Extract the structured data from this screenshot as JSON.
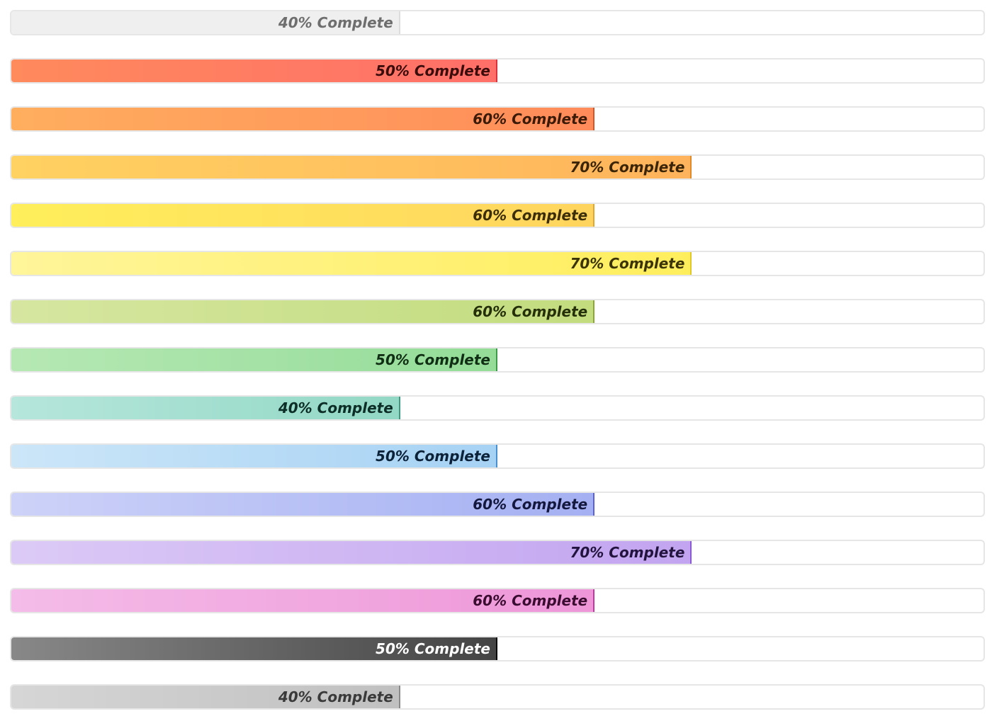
{
  "progress_bars": [
    {
      "label": "40% Complete",
      "percent": 40,
      "color_start": "#efefef",
      "color_end": "#efefef",
      "edge": "#dddddd",
      "text_color": "#6e6e6e"
    },
    {
      "label": "50% Complete",
      "percent": 50,
      "color_start": "#ff8a5c",
      "color_end": "#ff6f69",
      "edge": "#d9343b",
      "text_color": "#3b0c0c"
    },
    {
      "label": "60% Complete",
      "percent": 60,
      "color_start": "#ffae5e",
      "color_end": "#ff8b5a",
      "edge": "#d2572a",
      "text_color": "#3b1a08"
    },
    {
      "label": "70% Complete",
      "percent": 70,
      "color_start": "#ffd261",
      "color_end": "#ffb35c",
      "edge": "#e08a2a",
      "text_color": "#3b2508"
    },
    {
      "label": "60% Complete",
      "percent": 60,
      "color_start": "#ffef5c",
      "color_end": "#ffd45e",
      "edge": "#e0a830",
      "text_color": "#3b2e08"
    },
    {
      "label": "70% Complete",
      "percent": 70,
      "color_start": "#fff59a",
      "color_end": "#ffee5c",
      "edge": "#e0c82a",
      "text_color": "#3b3408"
    },
    {
      "label": "60% Complete",
      "percent": 60,
      "color_start": "#d6e6a0",
      "color_end": "#c2dc7e",
      "edge": "#8aa83a",
      "text_color": "#25300a"
    },
    {
      "label": "50% Complete",
      "percent": 50,
      "color_start": "#b6e8b4",
      "color_end": "#94dc98",
      "edge": "#3c9a48",
      "text_color": "#0f2e14"
    },
    {
      "label": "40% Complete",
      "percent": 40,
      "color_start": "#b6e6dc",
      "color_end": "#92d8c4",
      "edge": "#3c9a80",
      "text_color": "#0c2e26"
    },
    {
      "label": "50% Complete",
      "percent": 50,
      "color_start": "#cce6f8",
      "color_end": "#a6d2f4",
      "edge": "#4a90d0",
      "text_color": "#0c2238"
    },
    {
      "label": "60% Complete",
      "percent": 60,
      "color_start": "#cdd2f8",
      "color_end": "#a4b0f2",
      "edge": "#5a62d6",
      "text_color": "#14183e"
    },
    {
      "label": "70% Complete",
      "percent": 70,
      "color_start": "#dccaf6",
      "color_end": "#c2a4f0",
      "edge": "#8a5ad6",
      "text_color": "#22143e"
    },
    {
      "label": "60% Complete",
      "percent": 60,
      "color_start": "#f4bce8",
      "color_end": "#ee96d8",
      "edge": "#c03aa2",
      "text_color": "#3a0c30"
    },
    {
      "label": "50% Complete",
      "percent": 50,
      "color_start": "#888888",
      "color_end": "#444444",
      "edge": "#000000",
      "text_color": "#ffffff"
    },
    {
      "label": "40% Complete",
      "percent": 40,
      "color_start": "#d6d6d6",
      "color_end": "#c0c0c0",
      "edge": "#8a8a8a",
      "text_color": "#3a3a3a"
    }
  ]
}
